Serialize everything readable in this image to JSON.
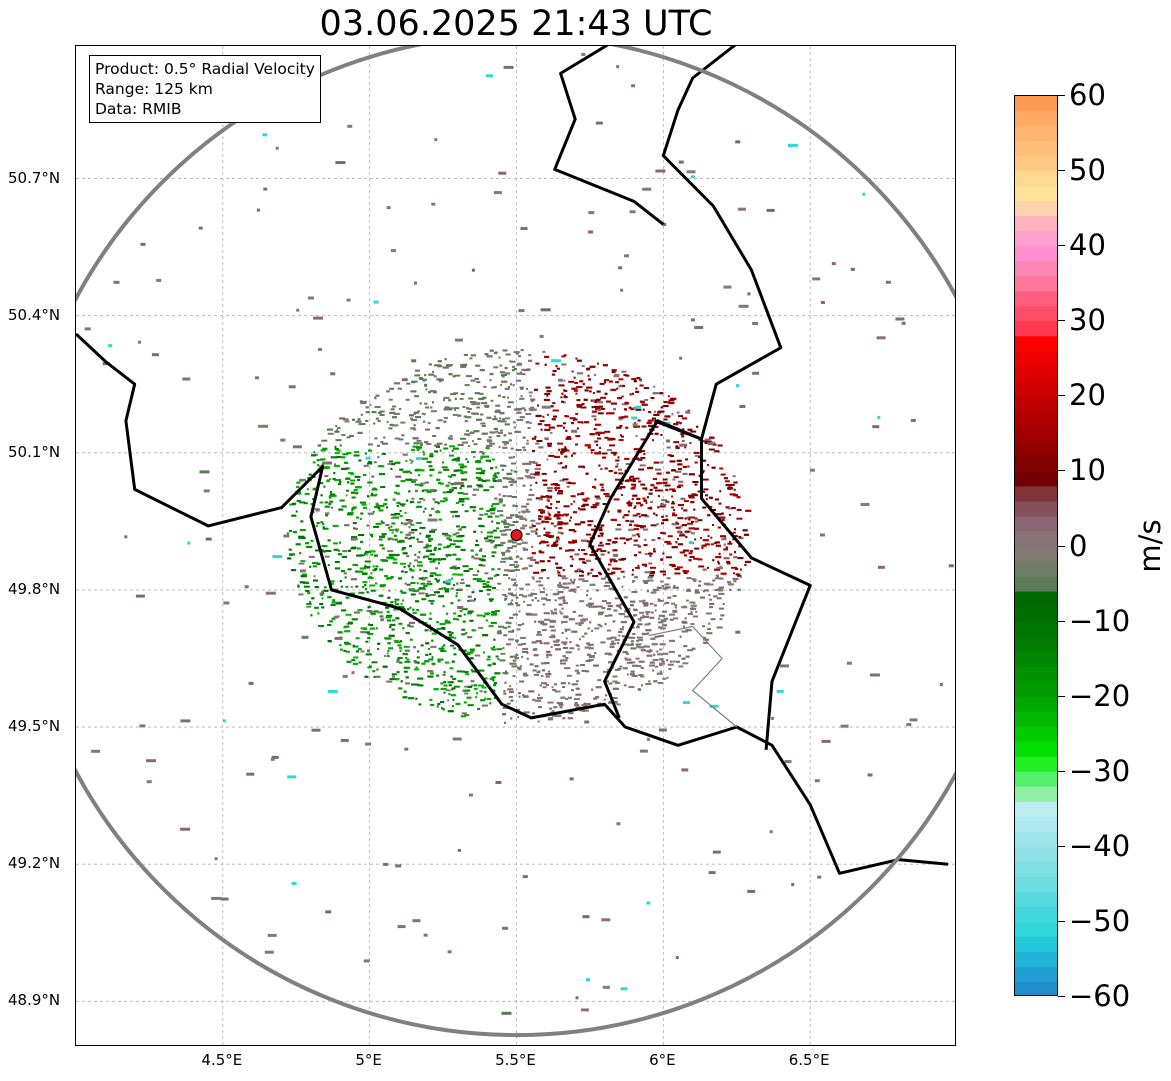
{
  "title": "03.06.2025 21:43 UTC",
  "info": {
    "product": "Product: 0.5° Radial Velocity",
    "range": "Range: 125 km",
    "data": "Data: RMIB"
  },
  "map": {
    "lon_range": [
      4.0,
      7.0
    ],
    "lat_range": [
      48.8,
      50.99
    ],
    "radar_site": {
      "lon": 5.5,
      "lat": 49.92
    },
    "range_km": 125,
    "range_ring_color": "#808080",
    "site_marker_color": "#e31a1c",
    "gridlines": true,
    "lat_ticks": [
      {
        "value": 50.7,
        "label": "50.7°N"
      },
      {
        "value": 50.4,
        "label": "50.4°N"
      },
      {
        "value": 50.1,
        "label": "50.1°N"
      },
      {
        "value": 49.8,
        "label": "49.8°N"
      },
      {
        "value": 49.5,
        "label": "49.5°N"
      },
      {
        "value": 49.2,
        "label": "49.2°N"
      },
      {
        "value": 48.9,
        "label": "48.9°N"
      }
    ],
    "lon_ticks": [
      {
        "value": 4.5,
        "label": "4.5°E"
      },
      {
        "value": 5.0,
        "label": "5°E"
      },
      {
        "value": 5.5,
        "label": "5.5°E"
      },
      {
        "value": 6.0,
        "label": "6°E"
      },
      {
        "value": 6.5,
        "label": "6.5°E"
      }
    ]
  },
  "colorbar": {
    "unit": "m/s",
    "min": -60,
    "max": 60,
    "ticks": [
      {
        "value": 60,
        "label": "60"
      },
      {
        "value": 50,
        "label": "50"
      },
      {
        "value": 40,
        "label": "40"
      },
      {
        "value": 30,
        "label": "30"
      },
      {
        "value": 20,
        "label": "20"
      },
      {
        "value": 10,
        "label": "10"
      },
      {
        "value": 0,
        "label": "0"
      },
      {
        "value": -10,
        "label": "−10"
      },
      {
        "value": -20,
        "label": "−20"
      },
      {
        "value": -30,
        "label": "−30"
      },
      {
        "value": -40,
        "label": "−40"
      },
      {
        "value": -50,
        "label": "−50"
      },
      {
        "value": -60,
        "label": "−60"
      }
    ],
    "bands": [
      {
        "from": 58,
        "to": 60,
        "color": "#ff9a55"
      },
      {
        "from": 56,
        "to": 58,
        "color": "#ffa964"
      },
      {
        "from": 54,
        "to": 56,
        "color": "#ffb570"
      },
      {
        "from": 52,
        "to": 54,
        "color": "#ffbf7a"
      },
      {
        "from": 50,
        "to": 52,
        "color": "#ffc985"
      },
      {
        "from": 48,
        "to": 50,
        "color": "#ffd98d"
      },
      {
        "from": 46,
        "to": 48,
        "color": "#ffe39a"
      },
      {
        "from": 44,
        "to": 46,
        "color": "#ffd3ad"
      },
      {
        "from": 42,
        "to": 44,
        "color": "#ffb3be"
      },
      {
        "from": 40,
        "to": 42,
        "color": "#ff9fd0"
      },
      {
        "from": 38,
        "to": 40,
        "color": "#ff8fd0"
      },
      {
        "from": 36,
        "to": 38,
        "color": "#ff85b5"
      },
      {
        "from": 34,
        "to": 36,
        "color": "#ff7899"
      },
      {
        "from": 32,
        "to": 34,
        "color": "#ff5d7e"
      },
      {
        "from": 30,
        "to": 32,
        "color": "#ff4d66"
      },
      {
        "from": 28,
        "to": 30,
        "color": "#ff3a52"
      },
      {
        "from": 26,
        "to": 28,
        "color": "#ff0000"
      },
      {
        "from": 24,
        "to": 26,
        "color": "#f00000"
      },
      {
        "from": 22,
        "to": 24,
        "color": "#e00000"
      },
      {
        "from": 20,
        "to": 22,
        "color": "#cf0000"
      },
      {
        "from": 18,
        "to": 20,
        "color": "#bf0000"
      },
      {
        "from": 16,
        "to": 18,
        "color": "#b00000"
      },
      {
        "from": 14,
        "to": 16,
        "color": "#a00000"
      },
      {
        "from": 12,
        "to": 14,
        "color": "#900000"
      },
      {
        "from": 10,
        "to": 12,
        "color": "#800000"
      },
      {
        "from": 8,
        "to": 10,
        "color": "#720000"
      },
      {
        "from": 6,
        "to": 8,
        "color": "#7f3438"
      },
      {
        "from": 4,
        "to": 6,
        "color": "#865058"
      },
      {
        "from": 2,
        "to": 4,
        "color": "#8a6670"
      },
      {
        "from": 0,
        "to": 2,
        "color": "#887476"
      },
      {
        "from": -2,
        "to": 0,
        "color": "#837b72"
      },
      {
        "from": -4,
        "to": -2,
        "color": "#6f7e66"
      },
      {
        "from": -6,
        "to": -4,
        "color": "#5c7a58"
      },
      {
        "from": -8,
        "to": -6,
        "color": "#006800"
      },
      {
        "from": -10,
        "to": -8,
        "color": "#006e00"
      },
      {
        "from": -12,
        "to": -10,
        "color": "#007500"
      },
      {
        "from": -14,
        "to": -12,
        "color": "#007d00"
      },
      {
        "from": -16,
        "to": -14,
        "color": "#008600"
      },
      {
        "from": -18,
        "to": -16,
        "color": "#009000"
      },
      {
        "from": -20,
        "to": -18,
        "color": "#009a00"
      },
      {
        "from": -22,
        "to": -20,
        "color": "#00a800"
      },
      {
        "from": -24,
        "to": -22,
        "color": "#00b800"
      },
      {
        "from": -26,
        "to": -24,
        "color": "#00cc00"
      },
      {
        "from": -28,
        "to": -26,
        "color": "#00e000"
      },
      {
        "from": -30,
        "to": -28,
        "color": "#20f020"
      },
      {
        "from": -32,
        "to": -30,
        "color": "#55f06e"
      },
      {
        "from": -34,
        "to": -32,
        "color": "#8ff0a6"
      },
      {
        "from": -36,
        "to": -34,
        "color": "#bdeef2"
      },
      {
        "from": -38,
        "to": -36,
        "color": "#ade9ee"
      },
      {
        "from": -40,
        "to": -38,
        "color": "#9ee4ea"
      },
      {
        "from": -42,
        "to": -40,
        "color": "#8fe2e6"
      },
      {
        "from": -44,
        "to": -42,
        "color": "#7ddfe2"
      },
      {
        "from": -46,
        "to": -44,
        "color": "#6adddf"
      },
      {
        "from": -48,
        "to": -46,
        "color": "#56dadd"
      },
      {
        "from": -50,
        "to": -48,
        "color": "#42d8db"
      },
      {
        "from": -52,
        "to": -50,
        "color": "#2ed6da"
      },
      {
        "from": -54,
        "to": -52,
        "color": "#22c8dc"
      },
      {
        "from": -56,
        "to": -54,
        "color": "#22b4d8"
      },
      {
        "from": -58,
        "to": -56,
        "color": "#1f9fd2"
      },
      {
        "from": -60,
        "to": -58,
        "color": "#1f8ccc"
      }
    ]
  }
}
